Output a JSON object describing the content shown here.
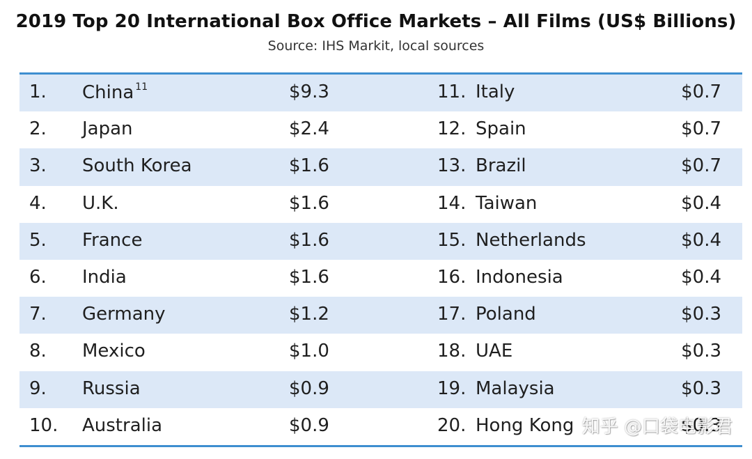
{
  "chart_data": {
    "type": "table",
    "title": "2019 Top 20 International Box Office Markets – All Films (US$ Billions)",
    "subtitle": "Source: IHS Markit, local sources",
    "rows_left": [
      {
        "rank": "1.",
        "country": "China",
        "sup": "11",
        "value": "$9.3"
      },
      {
        "rank": "2.",
        "country": "Japan",
        "sup": "",
        "value": "$2.4"
      },
      {
        "rank": "3.",
        "country": "South Korea",
        "sup": "",
        "value": "$1.6"
      },
      {
        "rank": "4.",
        "country": "U.K.",
        "sup": "",
        "value": "$1.6"
      },
      {
        "rank": "5.",
        "country": "France",
        "sup": "",
        "value": "$1.6"
      },
      {
        "rank": "6.",
        "country": "India",
        "sup": "",
        "value": "$1.6"
      },
      {
        "rank": "7.",
        "country": "Germany",
        "sup": "",
        "value": "$1.2"
      },
      {
        "rank": "8.",
        "country": "Mexico",
        "sup": "",
        "value": "$1.0"
      },
      {
        "rank": "9.",
        "country": "Russia",
        "sup": "",
        "value": "$0.9"
      },
      {
        "rank": "10.",
        "country": "Australia",
        "sup": "",
        "value": "$0.9"
      }
    ],
    "rows_right": [
      {
        "rank": "11.",
        "country": "Italy",
        "value": "$0.7"
      },
      {
        "rank": "12.",
        "country": "Spain",
        "value": "$0.7"
      },
      {
        "rank": "13.",
        "country": "Brazil",
        "value": "$0.7"
      },
      {
        "rank": "14.",
        "country": "Taiwan",
        "value": "$0.4"
      },
      {
        "rank": "15.",
        "country": "Netherlands",
        "value": "$0.4"
      },
      {
        "rank": "16.",
        "country": "Indonesia",
        "value": "$0.4"
      },
      {
        "rank": "17.",
        "country": "Poland",
        "value": "$0.3"
      },
      {
        "rank": "18.",
        "country": "UAE",
        "value": "$0.3"
      },
      {
        "rank": "19.",
        "country": "Malaysia",
        "value": "$0.3"
      },
      {
        "rank": "20.",
        "country": "Hong Kong",
        "value": "$0.3"
      }
    ],
    "row_shading": "alternating",
    "shade_color": "#dce8f7",
    "rule_color": "#3e8ed0"
  },
  "watermark": "知乎 @口袋电影君"
}
